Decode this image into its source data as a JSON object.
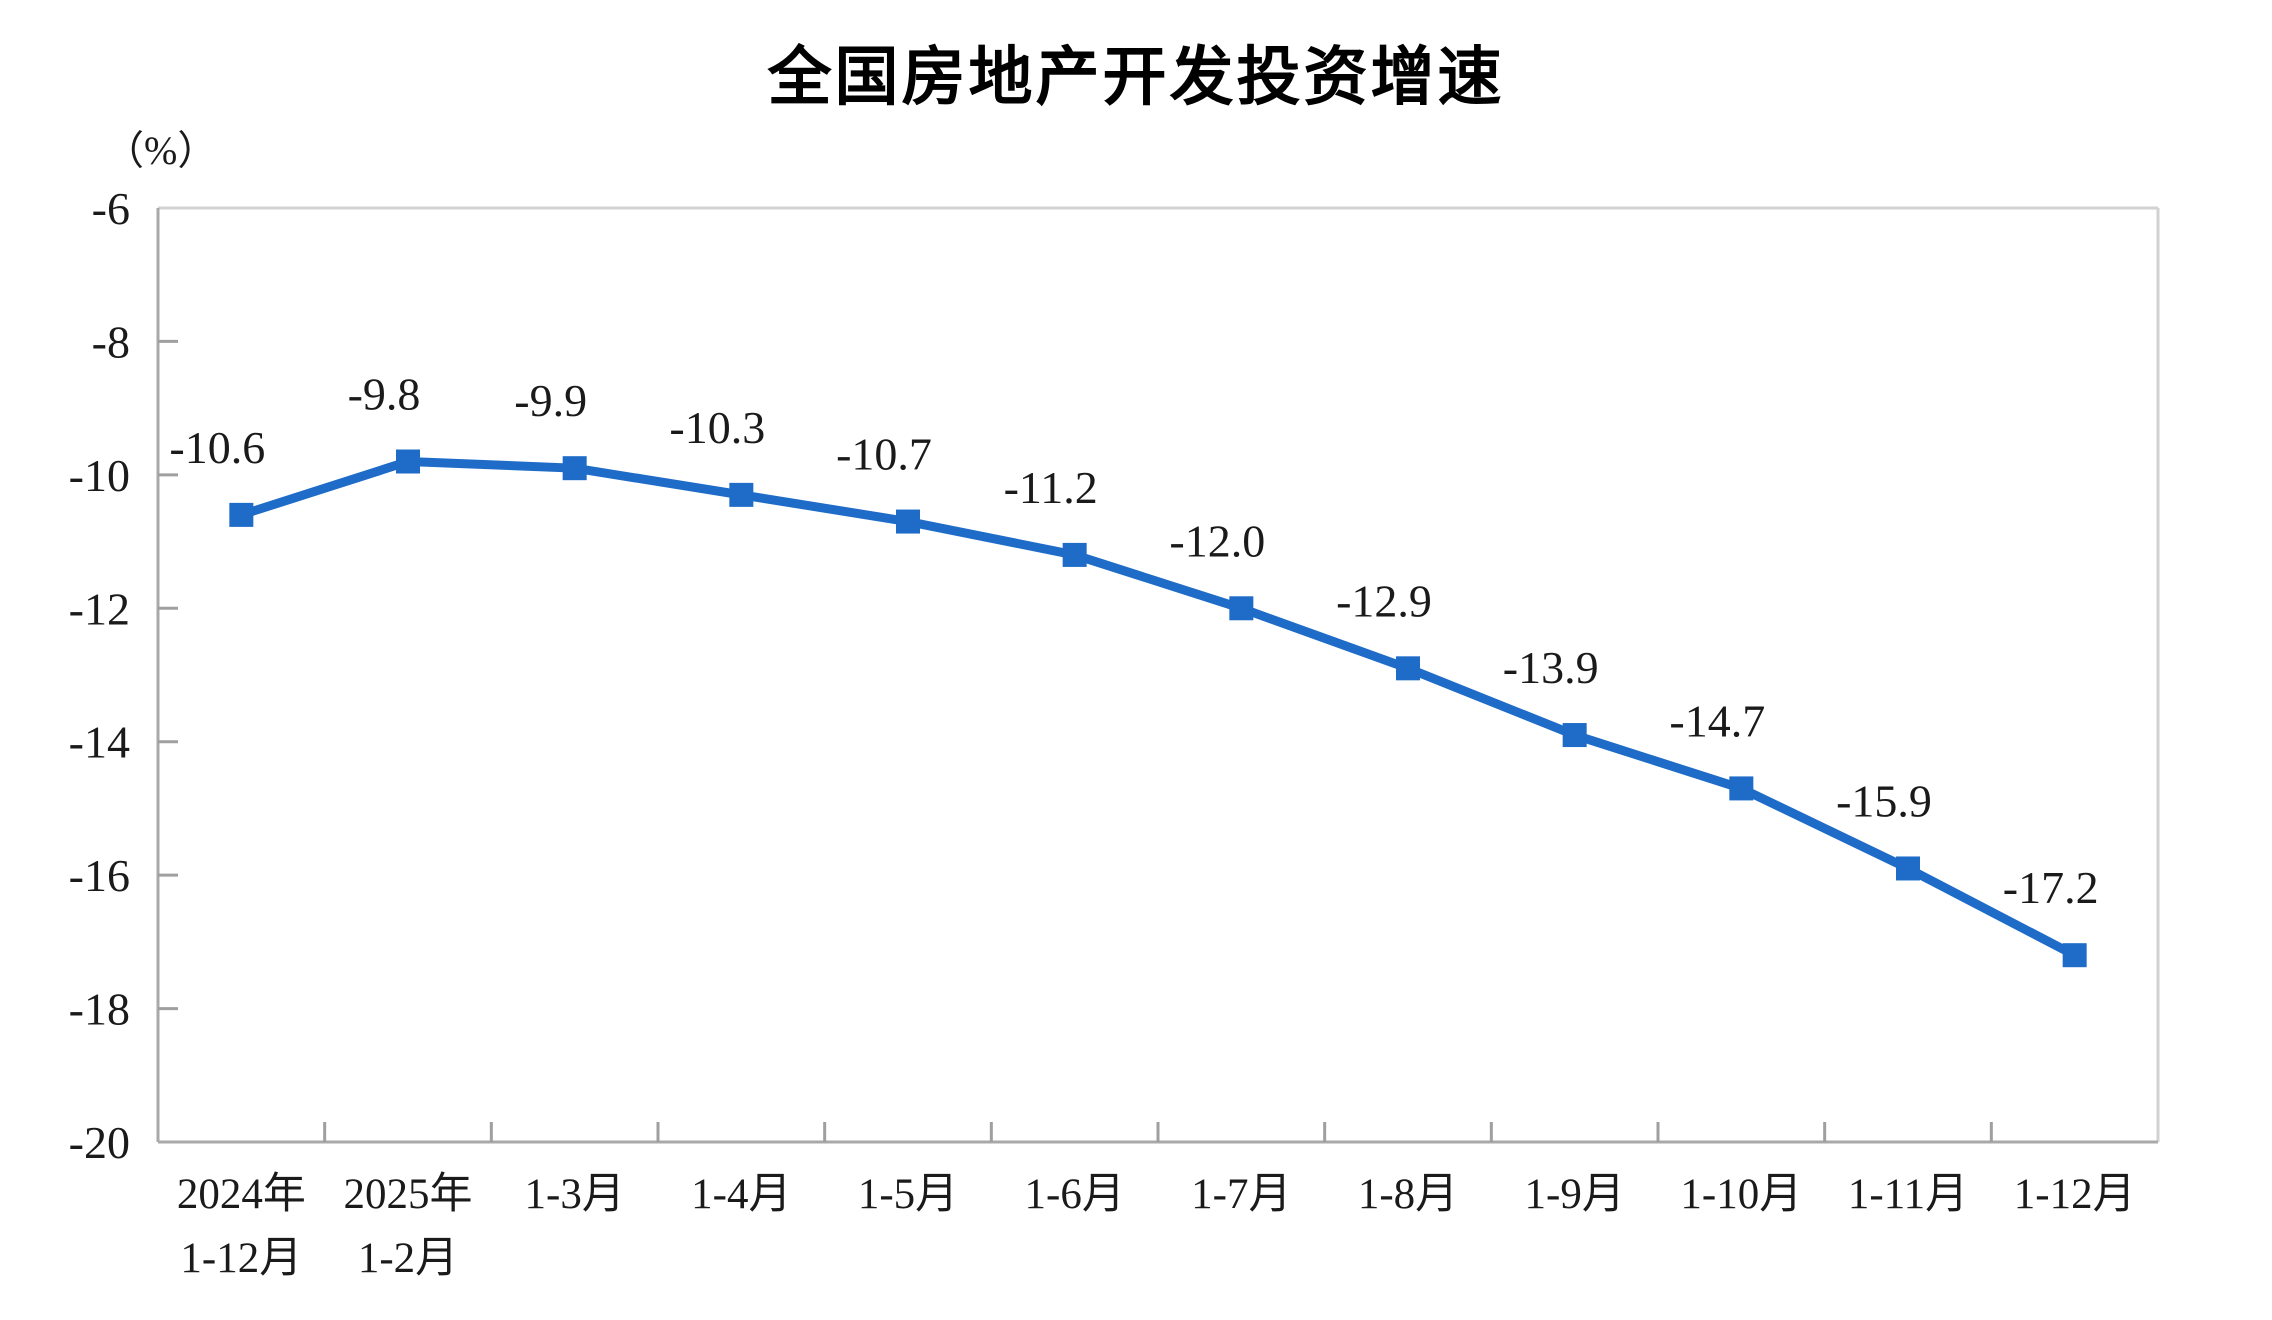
{
  "title": "全国房地产开发投资增速",
  "unit_label": "（%）",
  "chart_data": {
    "type": "line",
    "title": "全国房地产开发投资增速",
    "unit": "（%）",
    "categories": [
      [
        "2024年",
        "1-12月"
      ],
      [
        "2025年",
        "1-2月"
      ],
      [
        "1-3月"
      ],
      [
        "1-4月"
      ],
      [
        "1-5月"
      ],
      [
        "1-6月"
      ],
      [
        "1-7月"
      ],
      [
        "1-8月"
      ],
      [
        "1-9月"
      ],
      [
        "1-10月"
      ],
      [
        "1-11月"
      ],
      [
        "1-12月"
      ]
    ],
    "series": [
      {
        "name": "全国房地产开发投资增速",
        "values": [
          -10.6,
          -9.8,
          -9.9,
          -10.3,
          -10.7,
          -11.2,
          -12.0,
          -12.9,
          -13.9,
          -14.7,
          -15.9,
          -17.2
        ],
        "data_labels": [
          "-10.6",
          "-9.8",
          "-9.9",
          "-10.3",
          "-10.7",
          "-11.2",
          "-12.0",
          "-12.9",
          "-13.9",
          "-14.7",
          "-15.9",
          "-17.2"
        ]
      }
    ],
    "ylim": [
      -20,
      -6
    ],
    "ytick_labels": [
      "-6",
      "-8",
      "-10",
      "-12",
      "-14",
      "-16",
      "-18",
      "-20"
    ],
    "ytick_values": [
      -6,
      -8,
      -10,
      -12,
      -14,
      -16,
      -18,
      -20
    ],
    "grid": false,
    "legend_position": "none",
    "marker": "square",
    "colors": {
      "line": "#1E6BC8",
      "marker": "#1E6BC8",
      "axis": "#A9A9A9",
      "border": "#D2D2D2",
      "tick": "#9F9F9F",
      "text": "#1A1A1A",
      "background": "#FFFFFF"
    }
  }
}
